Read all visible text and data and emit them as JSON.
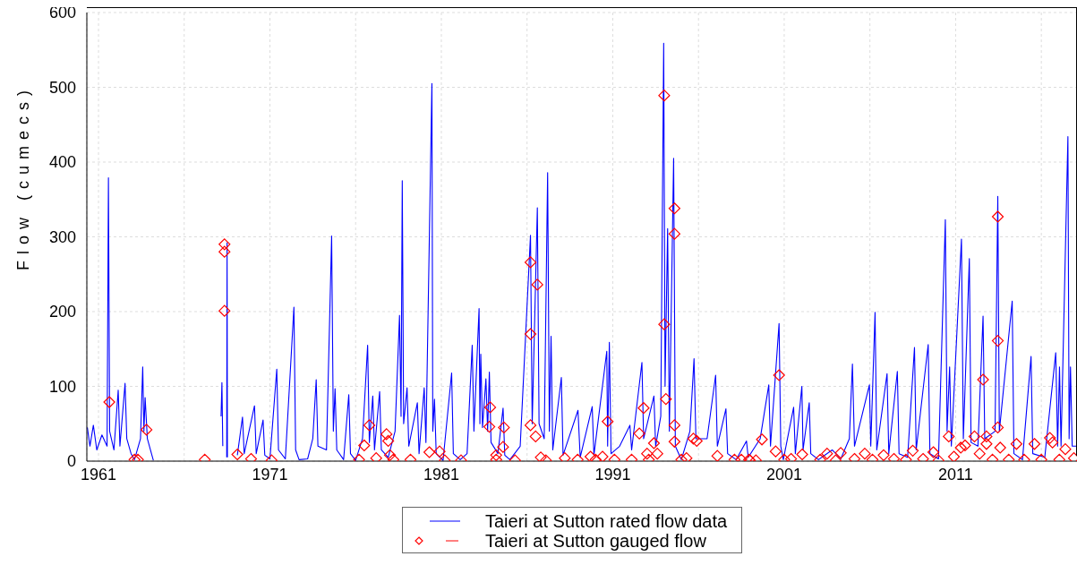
{
  "chart_data": {
    "type": "line",
    "ylabel": "Flow (cumecs)",
    "xlim": [
      1960.32,
      2018.08
    ],
    "ylim": [
      0,
      600
    ],
    "xticks": [
      1961,
      {
        "value": 1966,
        "label": null
      },
      1971,
      {
        "value": 1976,
        "label": null
      },
      1981,
      {
        "value": 1986,
        "label": null
      },
      1991,
      {
        "value": 1996,
        "label": null
      },
      2001,
      {
        "value": 2006,
        "label": null
      },
      2011,
      {
        "value": 2016,
        "label": null
      }
    ],
    "yticks": [
      0,
      100,
      200,
      300,
      400,
      500,
      600
    ],
    "grid": true,
    "legend": "bottom",
    "series": [
      {
        "name": "Taieri at Sutton rated flow data",
        "type": "line",
        "color": "#0000ff",
        "marker": "none",
        "line_style": "solid",
        "x": [
          1960.35,
          1960.5,
          1960.7,
          1960.9,
          1961.2,
          1961.5,
          1961.58,
          1961.65,
          1961.9,
          1962.15,
          1962.25,
          1962.55,
          1962.65,
          1962.9,
          1963.1,
          1963.45,
          1963.58,
          1963.65,
          1963.72,
          1963.85,
          1964.2,
          1966.0,
          1968.15,
          1968.2,
          1968.25,
          1968.35,
          1968.48,
          1968.5,
          1968.52,
          1968.8,
          1969.1,
          1969.4,
          1969.5,
          1970.1,
          1970.2,
          1970.6,
          1970.7,
          1971.0,
          1971.4,
          1971.5,
          1971.9,
          1972.4,
          1972.5,
          1972.7,
          1973.2,
          1973.5,
          1973.7,
          1973.8,
          1974.3,
          1974.6,
          1974.7,
          1974.8,
          1974.9,
          1975.3,
          1975.6,
          1975.7,
          1976.0,
          1976.4,
          1976.7,
          1976.8,
          1977.0,
          1977.1,
          1977.4,
          1977.5,
          1977.9,
          1978.3,
          1978.56,
          1978.65,
          1978.72,
          1978.8,
          1979.0,
          1979.1,
          1979.6,
          1979.7,
          1980.0,
          1980.1,
          1980.45,
          1980.5,
          1980.6,
          1980.7,
          1981.1,
          1981.6,
          1981.7,
          1982.1,
          1982.5,
          1982.8,
          1982.9,
          1983.2,
          1983.25,
          1983.3,
          1983.4,
          1983.6,
          1983.7,
          1983.8,
          1983.9,
          1984.3,
          1984.6,
          1984.7,
          1985.0,
          1985.6,
          1986.2,
          1986.3,
          1986.6,
          1986.7,
          1987.0,
          1987.2,
          1987.3,
          1987.4,
          1987.5,
          1988.0,
          1988.1,
          1988.97,
          1989.1,
          1989.8,
          1989.9,
          1990.65,
          1990.7,
          1990.8,
          1990.9,
          1991.4,
          1992.0,
          1992.1,
          1992.7,
          1992.8,
          1993.4,
          1993.5,
          1993.8,
          1993.97,
          1994.05,
          1994.2,
          1994.3,
          1994.55,
          1994.65,
          1995.0,
          1995.5,
          1995.74,
          1995.85,
          1996.5,
          1997.0,
          1997.1,
          1997.6,
          1997.7,
          1998.2,
          1998.8,
          1998.9,
          1999.6,
          2000.1,
          2000.2,
          2000.7,
          2000.8,
          2000.95,
          2001.55,
          2001.65,
          2002.03,
          2002.1,
          2002.46,
          2002.55,
          2003.0,
          2003.8,
          2004.3,
          2004.8,
          2004.98,
          2005.1,
          2005.97,
          2006.05,
          2006.3,
          2006.4,
          2007.0,
          2007.1,
          2007.6,
          2007.7,
          2008.2,
          2008.6,
          2008.7,
          2009.4,
          2009.5,
          2010.0,
          2010.4,
          2010.5,
          2010.65,
          2010.75,
          2011.34,
          2011.45,
          2011.8,
          2011.9,
          2012.3,
          2012.6,
          2012.7,
          2013.3,
          2013.46,
          2013.55,
          2014.3,
          2014.4,
          2014.9,
          2015.4,
          2015.5,
          2016.2,
          2016.84,
          2016.95,
          2017.06,
          2017.15,
          2017.55,
          2017.62,
          2017.7,
          2017.8,
          2018.05
        ],
        "values": [
          45,
          20,
          48,
          15,
          35,
          20,
          379,
          40,
          15,
          95,
          20,
          104,
          30,
          10,
          2,
          30,
          126,
          40,
          85,
          30,
          1,
          null,
          60,
          105,
          20,
          null,
          5,
          292,
          5,
          null,
          8,
          59,
          10,
          74,
          10,
          55,
          8,
          3,
          123,
          15,
          3,
          206,
          15,
          2,
          3,
          30,
          109,
          20,
          15,
          301,
          40,
          97,
          15,
          2,
          89,
          10,
          1,
          30,
          155,
          25,
          87,
          15,
          93,
          15,
          5,
          40,
          195,
          60,
          375,
          50,
          98,
          20,
          78,
          10,
          98,
          25,
          505,
          40,
          83,
          10,
          1,
          118,
          10,
          2,
          10,
          155,
          40,
          204,
          50,
          143,
          45,
          110,
          40,
          119,
          25,
          10,
          71,
          8,
          2,
          20,
          302,
          50,
          339,
          50,
          30,
          386,
          40,
          167,
          15,
          112,
          8,
          68,
          5,
          73,
          8,
          147,
          20,
          159,
          10,
          20,
          48,
          15,
          132,
          30,
          87,
          20,
          60,
          559,
          100,
          311,
          40,
          405,
          20,
          2,
          40,
          137,
          30,
          30,
          115,
          20,
          70,
          10,
          2,
          27,
          5,
          30,
          102,
          20,
          184,
          20,
          2,
          72,
          10,
          100,
          15,
          78,
          10,
          2,
          15,
          3,
          30,
          130,
          20,
          102,
          20,
          199,
          15,
          117,
          10,
          120,
          10,
          5,
          152,
          15,
          156,
          10,
          3,
          323,
          40,
          126,
          20,
          297,
          30,
          271,
          25,
          20,
          194,
          30,
          40,
          354,
          40,
          214,
          10,
          2,
          140,
          10,
          5,
          145,
          20,
          126,
          20,
          434,
          30,
          126,
          20,
          20
        ]
      },
      {
        "name": "Taieri at Sutton gauged flow",
        "type": "scatter",
        "color": "#ff0000",
        "marker": "diamond",
        "x": [
          1961.63,
          1963.1,
          1963.3,
          1963.8,
          1967.2,
          1968.35,
          1968.35,
          1968.35,
          1969.1,
          1969.9,
          1971.1,
          1976.2,
          1976.5,
          1976.8,
          1977.2,
          1977.8,
          1977.9,
          1978.0,
          1978.2,
          1979.2,
          1980.3,
          1980.9,
          1981.2,
          1982.15,
          1983.85,
          1983.8,
          1984.2,
          1984.2,
          1984.6,
          1984.65,
          1985.3,
          1986.2,
          1986.2,
          1986.2,
          1986.5,
          1986.6,
          1986.8,
          1987.1,
          1988.2,
          1988.95,
          1989.7,
          1990.0,
          1990.4,
          1990.7,
          1991.1,
          1992.1,
          1992.55,
          1992.8,
          1993.0,
          1993.1,
          1993.4,
          1993.6,
          1994.0,
          1994.0,
          1994.1,
          1994.6,
          1994.6,
          1994.6,
          1994.6,
          1995.0,
          1995.3,
          1995.7,
          1995.9,
          1997.1,
          1998.1,
          1998.5,
          1998.95,
          1999.0,
          1999.35,
          1999.7,
          2000.5,
          2000.7,
          2001.0,
          2001.4,
          2002.05,
          2003.1,
          2003.5,
          2004.0,
          2004.3,
          2005.1,
          2005.7,
          2006.15,
          2006.8,
          2007.4,
          2008.1,
          2008.5,
          2009.1,
          2009.7,
          2010.0,
          2010.6,
          2010.9,
          2011.3,
          2011.55,
          2012.1,
          2012.4,
          2012.6,
          2012.8,
          2012.8,
          2013.15,
          2013.46,
          2013.46,
          2013.46,
          2013.6,
          2014.1,
          2014.55,
          2015.0,
          2015.6,
          2016.0,
          2016.5,
          2016.65,
          2017.05,
          2017.4,
          2017.9
        ],
        "values": [
          79,
          2,
          2,
          42,
          2,
          290,
          280,
          201,
          9,
          3,
          1,
          2,
          21,
          48,
          4,
          36,
          27,
          8,
          2,
          2,
          12,
          13,
          1,
          1,
          72,
          46,
          8,
          2,
          19,
          45,
          1,
          48,
          170,
          266,
          33,
          236,
          5,
          1,
          4,
          2,
          6,
          2,
          6,
          53,
          2,
          2,
          37,
          71,
          10,
          2,
          24,
          10,
          489,
          183,
          83,
          338,
          304,
          48,
          26,
          2,
          4,
          30,
          27,
          7,
          2,
          2,
          2,
          1,
          1,
          29,
          13,
          115,
          2,
          3,
          9,
          2,
          10,
          1,
          11,
          3,
          10,
          2,
          8,
          3,
          2,
          14,
          3,
          12,
          1,
          33,
          6,
          18,
          21,
          33,
          10,
          109,
          33,
          23,
          2,
          327,
          161,
          45,
          18,
          2,
          23,
          2,
          23,
          2,
          31,
          25,
          2,
          16,
          4
        ]
      }
    ]
  }
}
